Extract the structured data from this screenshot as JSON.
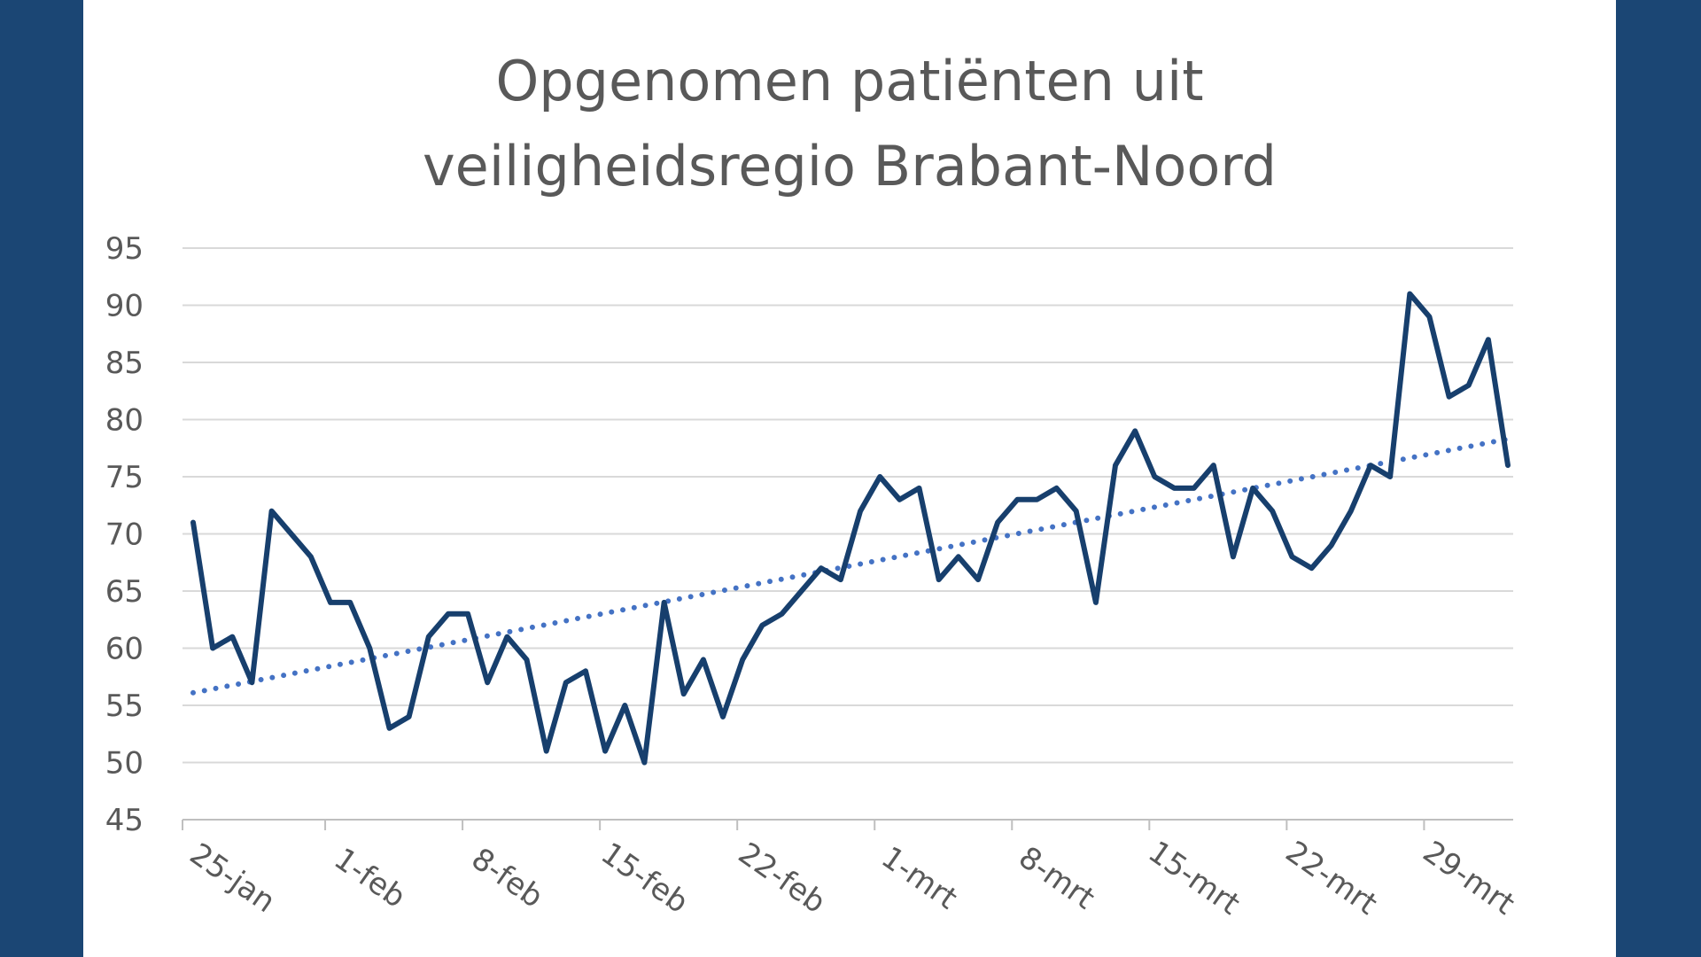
{
  "colors": {
    "background": "#1b4674",
    "panel": "#ffffff",
    "line": "#173f6d",
    "trend": "#4472c4",
    "grid": "#d9d9d9",
    "text": "#595959"
  },
  "chart_data": {
    "type": "line",
    "title_lines": [
      "Opgenomen patiënten uit",
      "veiligheidsregio Brabant-Noord"
    ],
    "xlabel": "",
    "ylabel": "",
    "ylim": [
      45,
      95
    ],
    "yticks": [
      95,
      90,
      85,
      80,
      75,
      70,
      65,
      60,
      55,
      50,
      45
    ],
    "grid": true,
    "legend": "none",
    "x_start": "25-jan",
    "x_end": "31-mrt",
    "xticks": [
      {
        "label": "25-jan",
        "day": 0
      },
      {
        "label": "1-feb",
        "day": 7
      },
      {
        "label": "8-feb",
        "day": 14
      },
      {
        "label": "15-feb",
        "day": 21
      },
      {
        "label": "22-feb",
        "day": 28
      },
      {
        "label": "1-mrt",
        "day": 35
      },
      {
        "label": "8-mrt",
        "day": 42
      },
      {
        "label": "15-mrt",
        "day": 49
      },
      {
        "label": "22-mrt",
        "day": 56
      },
      {
        "label": "29-mrt",
        "day": 63
      }
    ],
    "series": [
      {
        "style": "solid",
        "values": [
          71,
          60,
          61,
          57,
          72,
          70,
          68,
          64,
          64,
          60,
          53,
          54,
          61,
          63,
          63,
          57,
          61,
          59,
          51,
          57,
          58,
          51,
          55,
          50,
          64,
          56,
          59,
          54,
          59,
          62,
          63,
          65,
          67,
          66,
          72,
          75,
          73,
          74,
          66,
          68,
          66,
          71,
          73,
          73,
          74,
          72,
          64,
          76,
          79,
          75,
          74,
          74,
          76,
          68,
          74,
          72,
          68,
          67,
          69,
          72,
          76,
          75,
          91,
          89,
          82,
          83,
          87,
          76
        ]
      }
    ],
    "trendline": {
      "type": "linear",
      "style": "dotted",
      "start": 56.1,
      "end": 78.3
    }
  }
}
